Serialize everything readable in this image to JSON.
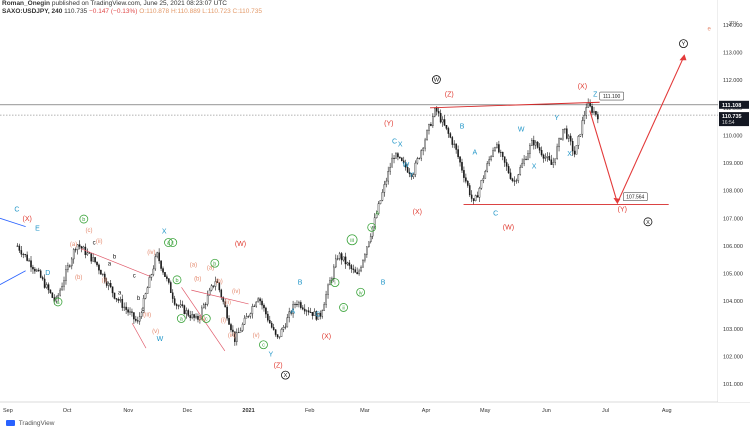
{
  "header": {
    "author": "Roman_Onegin",
    "published": "published on TradingView.com, June 25, 2021 08:23:07 UTC",
    "symbol_line": "SAXO:USDJPY, 240",
    "last": "110.735",
    "change": "−0.147 (−0.13%)",
    "open": "O:110.878",
    "high": "H:110.889",
    "low": "L:110.723",
    "close": "C:110.735",
    "currency": "JPY"
  },
  "footer": {
    "brand": "TradingView"
  },
  "colors": {
    "candle": "#1a1a1a",
    "red_label": "#e0392f",
    "salmon_label": "#e48a6f",
    "blue_label": "#2196c8",
    "green_label": "#3aa33a",
    "black_label": "#111111",
    "pink_line": "#e05a6a",
    "channel_line": "#d62828",
    "arrow_red": "#e33a3a",
    "price_tag_bg": "#131722"
  },
  "chart_data": {
    "type": "candlestick",
    "y_axis": {
      "ylim": [
        100.35,
        114.25
      ],
      "ticks": [
        "114.000",
        "113.000",
        "112.000",
        "111.000",
        "110.000",
        "109.000",
        "108.000",
        "107.000",
        "106.000",
        "105.000",
        "104.000",
        "103.000",
        "102.000",
        "101.000"
      ],
      "unit": "JPY"
    },
    "x_axis": {
      "ticks": [
        "Sep",
        "Oct",
        "Nov",
        "Dec",
        "2021",
        "Feb",
        "Mar",
        "Apr",
        "May",
        "Jun",
        "Jul",
        "Aug"
      ]
    },
    "price_tags": [
      {
        "label": "111.108",
        "value": 111.108,
        "style": "dark"
      },
      {
        "label": "110.735",
        "value": 110.735,
        "style": "dark",
        "sub": "16:54"
      }
    ],
    "horizontal_lines": [
      {
        "value": 111.108,
        "color": "#555555"
      },
      {
        "value": 110.735,
        "color": "#999999",
        "dashed": true
      }
    ],
    "callouts": [
      {
        "label": "111.100",
        "value": 111.1
      },
      {
        "label": "107.564",
        "value": 107.564
      }
    ],
    "price_path": [
      {
        "date": "2020-09",
        "value": 106.0
      },
      {
        "date": "2020-09",
        "value": 105.1
      },
      {
        "date": "2020-09",
        "value": 103.95
      },
      {
        "date": "2020-10",
        "value": 106.1
      },
      {
        "date": "2020-10",
        "value": 105.4
      },
      {
        "date": "2020-10",
        "value": 104.2
      },
      {
        "date": "2020-11",
        "value": 103.2
      },
      {
        "date": "2020-11",
        "value": 105.7
      },
      {
        "date": "2020-11",
        "value": 103.9
      },
      {
        "date": "2020-12",
        "value": 103.3
      },
      {
        "date": "2020-12",
        "value": 104.8
      },
      {
        "date": "2020-12",
        "value": 102.6
      },
      {
        "date": "2021-01",
        "value": 104.2
      },
      {
        "date": "2021-01",
        "value": 102.6
      },
      {
        "date": "2021-01",
        "value": 104.0
      },
      {
        "date": "2021-02",
        "value": 103.4
      },
      {
        "date": "2021-02",
        "value": 105.7
      },
      {
        "date": "2021-02",
        "value": 104.9
      },
      {
        "date": "2021-03",
        "value": 106.9
      },
      {
        "date": "2021-03",
        "value": 109.3
      },
      {
        "date": "2021-03",
        "value": 108.6
      },
      {
        "date": "2021-04",
        "value": 110.95
      },
      {
        "date": "2021-04",
        "value": 109.6
      },
      {
        "date": "2021-04",
        "value": 107.5
      },
      {
        "date": "2021-05",
        "value": 109.7
      },
      {
        "date": "2021-05",
        "value": 108.3
      },
      {
        "date": "2021-05",
        "value": 109.8
      },
      {
        "date": "2021-06",
        "value": 108.9
      },
      {
        "date": "2021-06",
        "value": 110.3
      },
      {
        "date": "2021-06",
        "value": 109.3
      },
      {
        "date": "2021-06",
        "value": 111.11
      },
      {
        "date": "2021-06",
        "value": 110.73
      }
    ],
    "annotations": [
      {
        "text": "C",
        "color": "blue",
        "date": "2020-09",
        "value": 107.25
      },
      {
        "text": "(X)",
        "color": "red",
        "date": "2020-09",
        "value": 106.9
      },
      {
        "text": "E",
        "color": "blue",
        "date": "2020-09",
        "value": 106.55
      },
      {
        "text": "D",
        "color": "blue",
        "date": "2020-09",
        "value": 104.95
      },
      {
        "text": "a",
        "color": "green",
        "circle": true,
        "date": "2020-09",
        "value": 103.9
      },
      {
        "text": "(a)",
        "color": "salmon",
        "date": "2020-10",
        "value": 106.0
      },
      {
        "text": "(b)",
        "color": "salmon",
        "date": "2020-10",
        "value": 104.8
      },
      {
        "text": "b",
        "color": "green",
        "circle": true,
        "date": "2020-10",
        "value": 106.9
      },
      {
        "text": "(c)",
        "color": "salmon",
        "date": "2020-10",
        "value": 106.5
      },
      {
        "text": "c",
        "color": "black",
        "date": "2020-10",
        "value": 106.05
      },
      {
        "text": "(ii)",
        "color": "salmon",
        "date": "2020-10",
        "value": 106.1
      },
      {
        "text": "(i)",
        "color": "salmon",
        "date": "2020-10",
        "value": 104.7
      },
      {
        "text": "a",
        "color": "black",
        "date": "2020-10",
        "value": 105.3
      },
      {
        "text": "b",
        "color": "black",
        "date": "2020-10",
        "value": 105.55
      },
      {
        "text": "a",
        "color": "black",
        "date": "2020-10",
        "value": 104.25
      },
      {
        "text": "c",
        "color": "black",
        "date": "2020-11",
        "value": 104.85
      },
      {
        "text": "b",
        "color": "black",
        "date": "2020-11",
        "value": 104.05
      },
      {
        "text": "c",
        "color": "black",
        "date": "2020-11",
        "value": 103.65
      },
      {
        "text": "(iii)",
        "color": "salmon",
        "date": "2020-11",
        "value": 103.45
      },
      {
        "text": "(iv)",
        "color": "salmon",
        "date": "2020-11",
        "value": 105.7
      },
      {
        "text": "(v)",
        "color": "salmon",
        "date": "2020-11",
        "value": 102.85
      },
      {
        "text": "W",
        "color": "blue",
        "date": "2020-11",
        "value": 102.55
      },
      {
        "text": "X",
        "color": "blue",
        "date": "2020-11",
        "value": 106.45
      },
      {
        "text": "a",
        "color": "green",
        "circle": true,
        "date": "2020-11",
        "value": 106.05
      },
      {
        "text": "c",
        "color": "green",
        "circle": true,
        "date": "2020-11",
        "value": 106.05
      },
      {
        "text": "b",
        "color": "green",
        "circle": true,
        "date": "2020-11",
        "value": 104.7
      },
      {
        "text": "a",
        "color": "green",
        "circle": true,
        "date": "2020-11",
        "value": 103.3
      },
      {
        "text": "(a)",
        "color": "salmon",
        "date": "2020-12",
        "value": 105.25
      },
      {
        "text": "(b)",
        "color": "salmon",
        "date": "2020-12",
        "value": 104.75
      },
      {
        "text": "(c)",
        "color": "salmon",
        "date": "2020-12",
        "value": 103.3
      },
      {
        "text": "c",
        "color": "green",
        "circle": true,
        "date": "2020-12",
        "value": 103.3
      },
      {
        "text": "(a)",
        "color": "salmon",
        "date": "2020-12",
        "value": 105.15
      },
      {
        "text": "b",
        "color": "green",
        "circle": true,
        "date": "2020-12",
        "value": 105.3
      },
      {
        "text": "(b)",
        "color": "salmon",
        "date": "2020-12",
        "value": 104.65
      },
      {
        "text": "(i)",
        "color": "salmon",
        "date": "2020-12",
        "value": 103.25
      },
      {
        "text": "(ii)",
        "color": "salmon",
        "date": "2020-12",
        "value": 103.9
      },
      {
        "text": "(iii)",
        "color": "salmon",
        "date": "2020-12",
        "value": 102.7
      },
      {
        "text": "(iv)",
        "color": "salmon",
        "date": "2020-12",
        "value": 104.3
      },
      {
        "text": "(v)",
        "color": "salmon",
        "date": "2021-01",
        "value": 102.7
      },
      {
        "text": "c",
        "color": "green",
        "circle": true,
        "date": "2021-01",
        "value": 102.35
      },
      {
        "text": "Y",
        "color": "blue",
        "date": "2021-01",
        "value": 102.0
      },
      {
        "text": "(Z)",
        "color": "red",
        "date": "2021-01",
        "value": 101.6
      },
      {
        "text": "X",
        "color": "black",
        "circle": true,
        "date": "2021-01",
        "value": 101.25
      },
      {
        "text": "(W)",
        "color": "red",
        "date": "2020-12",
        "value": 106.0
      },
      {
        "text": "A",
        "color": "blue",
        "date": "2021-01",
        "value": 103.55
      },
      {
        "text": "B",
        "color": "blue",
        "date": "2021-01",
        "value": 104.6
      },
      {
        "text": "C",
        "color": "blue",
        "date": "2021-02",
        "value": 103.45
      },
      {
        "text": "(X)",
        "color": "red",
        "date": "2021-02",
        "value": 102.65
      },
      {
        "text": "i",
        "color": "green",
        "circle": true,
        "date": "2021-02",
        "value": 104.6
      },
      {
        "text": "ii",
        "color": "green",
        "circle": true,
        "date": "2021-02",
        "value": 103.7
      },
      {
        "text": "iii",
        "color": "green",
        "circle": true,
        "date": "2021-02",
        "value": 106.15
      },
      {
        "text": "iv",
        "color": "green",
        "circle": true,
        "date": "2021-02",
        "value": 104.25
      },
      {
        "text": "v",
        "color": "green",
        "circle": true,
        "date": "2021-03",
        "value": 106.6
      },
      {
        "text": "A",
        "color": "green",
        "date": "2021-03",
        "value": 107.1
      },
      {
        "text": "B",
        "color": "blue",
        "date": "2021-03",
        "value": 104.6
      },
      {
        "text": "(Y)",
        "color": "red",
        "date": "2021-03",
        "value": 110.35
      },
      {
        "text": "C",
        "color": "blue",
        "date": "2021-03",
        "value": 109.7
      },
      {
        "text": "X",
        "color": "blue",
        "date": "2021-03",
        "value": 109.6
      },
      {
        "text": "W",
        "color": "blue",
        "date": "2021-03",
        "value": 108.85
      },
      {
        "text": "Y",
        "color": "blue",
        "date": "2021-03",
        "value": 108.5
      },
      {
        "text": "(X)",
        "color": "red",
        "date": "2021-03",
        "value": 107.15
      },
      {
        "text": "W",
        "color": "black",
        "circle": true,
        "date": "2021-04",
        "value": 111.95
      },
      {
        "text": "(Z)",
        "color": "red",
        "date": "2021-04",
        "value": 111.4
      },
      {
        "text": "B",
        "color": "blue",
        "date": "2021-04",
        "value": 110.25
      },
      {
        "text": "A",
        "color": "blue",
        "date": "2021-04",
        "value": 109.3
      },
      {
        "text": "C",
        "color": "blue",
        "date": "2021-05",
        "value": 107.1
      },
      {
        "text": "(W)",
        "color": "red",
        "date": "2021-05",
        "value": 106.6
      },
      {
        "text": "W",
        "color": "blue",
        "date": "2021-05",
        "value": 110.15
      },
      {
        "text": "X",
        "color": "blue",
        "date": "2021-05",
        "value": 108.8
      },
      {
        "text": "Y",
        "color": "blue",
        "date": "2021-06",
        "value": 110.55
      },
      {
        "text": "X",
        "color": "blue",
        "date": "2021-06",
        "value": 109.25
      },
      {
        "text": "(X)",
        "color": "red",
        "date": "2021-06",
        "value": 111.7
      },
      {
        "text": "Z",
        "color": "blue",
        "date": "2021-06",
        "value": 111.4
      },
      {
        "text": "(Y)",
        "color": "red",
        "date": "2021-07",
        "value": 107.25
      },
      {
        "text": "X",
        "color": "black",
        "circle": true,
        "date": "2021-07",
        "value": 106.8
      },
      {
        "text": "Y",
        "color": "black",
        "circle": true,
        "date": "2021-08",
        "value": 113.25
      },
      {
        "text": "e",
        "color": "salmon",
        "date": "2021-08",
        "value": 113.8
      }
    ]
  }
}
